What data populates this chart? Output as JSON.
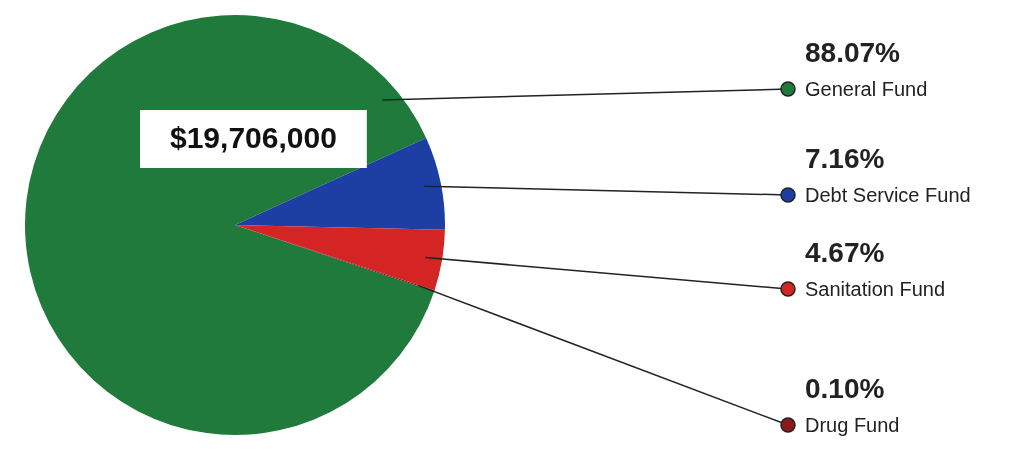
{
  "chart_data": {
    "type": "pie",
    "categories": [
      "General Fund",
      "Debt Service Fund",
      "Sanitation Fund",
      "Drug Fund"
    ],
    "values": [
      88.07,
      7.16,
      4.67,
      0.1
    ],
    "value_labels": [
      "88.07%",
      "7.16%",
      "4.67%",
      "0.10%"
    ],
    "colors": [
      "#1f7a3c",
      "#1d3fa3",
      "#d42424",
      "#8a1a1a"
    ],
    "annotations": [
      "$19,706,000"
    ],
    "legend": "right"
  }
}
